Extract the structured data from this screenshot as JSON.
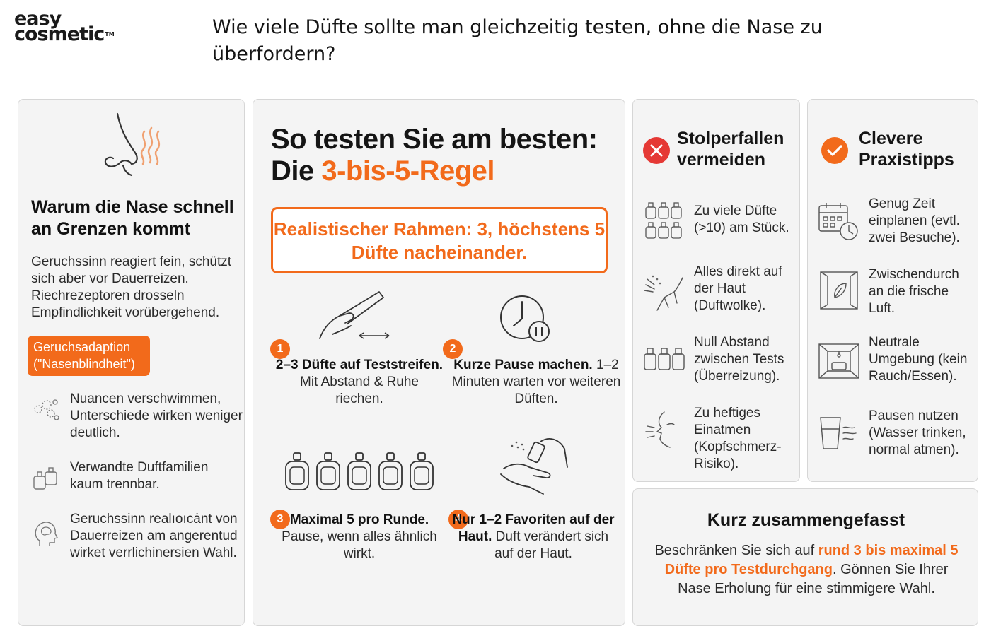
{
  "brand": {
    "line1": "easy",
    "line2": "cosmetic",
    "tm": "TM"
  },
  "headline": "Wie viele Düfte sollte man gleichzeitig testen, ohne die Nase zu überfordern?",
  "colors": {
    "accent": "#f26a1b",
    "card_bg": "#f4f4f4",
    "error": "#e53935"
  },
  "card1": {
    "icon": "nose-scent-icon",
    "title": "Warum die Nase schnell an Grenzen kommt",
    "body": "Geruchssinn reagiert fein, schützt sich aber vor Dauerreizen. Riechrezeptoren drosseln Empfindlichkeit vorübergehend.",
    "badge": "Geruchsadaption (\"Nasenblindheit\")",
    "items": [
      {
        "icon": "blurred-scent-icon",
        "text": "Nuancen verschwimmen, Unterschiede wirken weniger deutlich."
      },
      {
        "icon": "perfume-bottles-icon",
        "text": "Verwandte Duftfamilien kaum trennbar."
      },
      {
        "icon": "head-brain-icon",
        "text": "Geruchssinn realıoıcȧnt von Dauerreizen am angerentud wirket verrlichinersien Wahl."
      }
    ]
  },
  "card2": {
    "title_part1": "So testen Sie am besten:",
    "title_part2": "Die ",
    "title_accent": "3-bis-5-Regel",
    "frame": "Realistischer Rahmen: 3, höchstens 5 Düfte nacheinander.",
    "steps": [
      {
        "num": "1",
        "icon": "test-strip-hand-icon",
        "bold": "2–3 Düfte auf Teststreifen.",
        "text": " Mit Abstand & Ruhe riechen."
      },
      {
        "num": "2",
        "icon": "clock-pause-icon",
        "bold": "Kurze Pause machen.",
        "text": " 1–2 Minuten warten vor weiteren Düften."
      },
      {
        "num": "3",
        "icon": "five-bottles-icon",
        "bold": "Maximal 5 pro Runde.",
        "text": " Pause, wenn alles ähnlich wirkt."
      },
      {
        "num": "4",
        "icon": "spray-wrist-icon",
        "bold": "Nur 1–2 Favoriten auf der Haut.",
        "text": " Duft verändert sich auf der Haut."
      }
    ]
  },
  "card3": {
    "icon": "x-circle-icon",
    "title": "Stolperfallen vermeiden",
    "items": [
      {
        "icon": "many-bottles-icon",
        "text": "Zu viele Düfte (>10) am Stück."
      },
      {
        "icon": "spray-skin-icon",
        "text": "Alles direkt auf der Haut (Duftwolke)."
      },
      {
        "icon": "three-bottles-icon",
        "text": "Null Abstand zwischen Tests (Überreizung)."
      },
      {
        "icon": "inhale-face-icon",
        "text": "Zu heftiges Einatmen (Kopfschmerz-Risiko)."
      }
    ]
  },
  "card4": {
    "icon": "check-circle-icon",
    "title": "Clevere Praxistipps",
    "items": [
      {
        "icon": "calendar-clock-icon",
        "text": "Genug Zeit einplanen (evtl. zwei Besuche)."
      },
      {
        "icon": "open-window-icon",
        "text": "Zwischendurch an die frische Luft."
      },
      {
        "icon": "neutral-room-icon",
        "text": "Neutrale Umgebung (kein Rauch/Essen)."
      },
      {
        "icon": "water-glass-icon",
        "text": "Pausen nutzen (Wasser trinken, normal atmen)."
      }
    ]
  },
  "summary": {
    "title": "Kurz zusammengefasst",
    "pre": "Beschränken Sie sich auf ",
    "accent": "rund 3 bis maximal 5 Düfte pro Testdurchgang",
    "post": ". Gönnen Sie Ihrer Nase Erholung für eine stimmigere Wahl."
  }
}
